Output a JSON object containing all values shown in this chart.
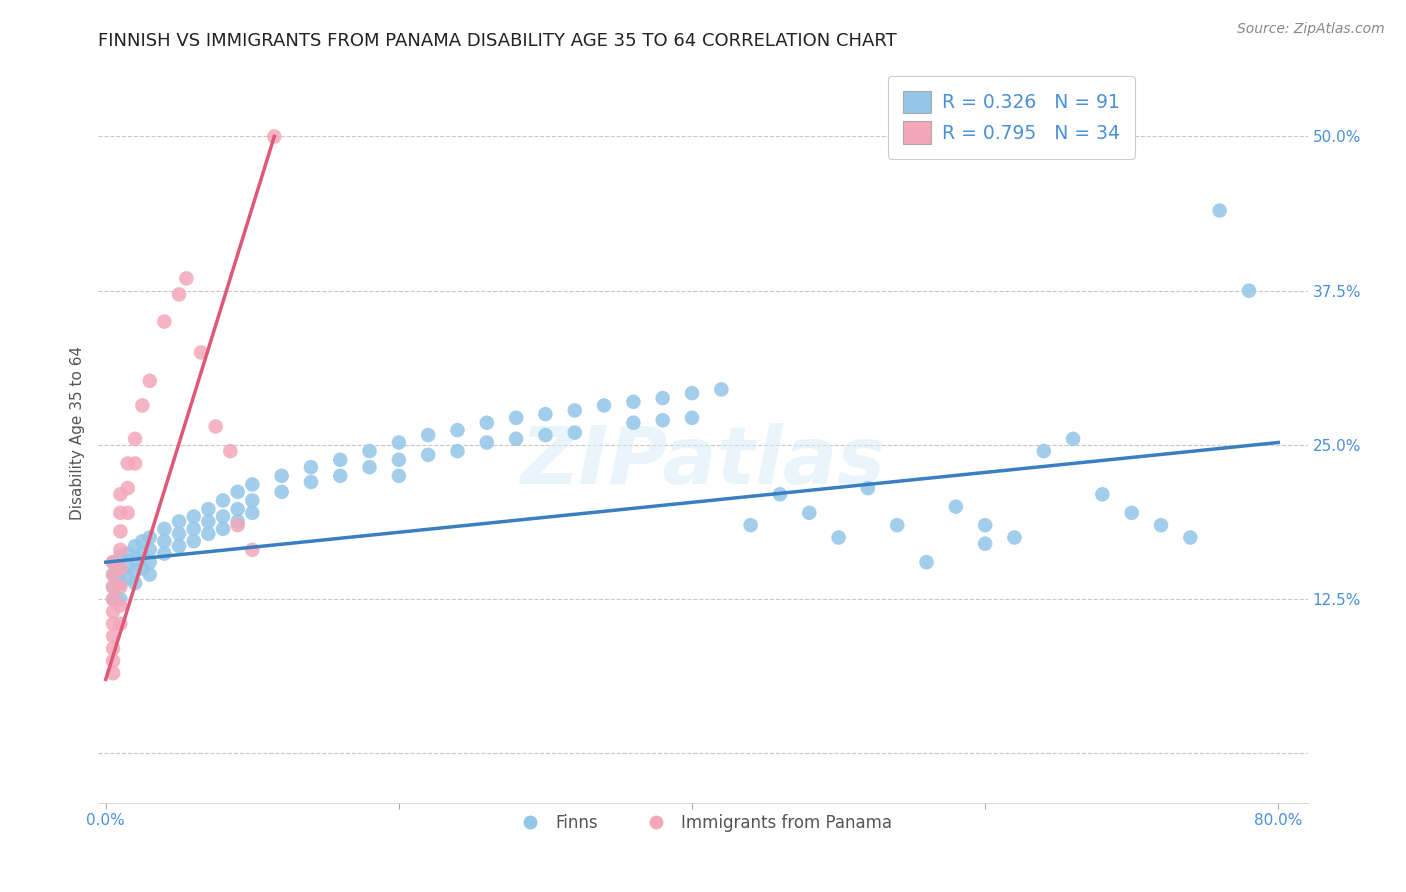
{
  "title": "FINNISH VS IMMIGRANTS FROM PANAMA DISABILITY AGE 35 TO 64 CORRELATION CHART",
  "source": "Source: ZipAtlas.com",
  "ylabel": "Disability Age 35 to 64",
  "xlim": [
    -0.005,
    0.82
  ],
  "ylim": [
    -0.04,
    0.56
  ],
  "yticks": [
    0.0,
    0.125,
    0.25,
    0.375,
    0.5
  ],
  "ytick_labels": [
    "",
    "12.5%",
    "25.0%",
    "37.5%",
    "50.0%"
  ],
  "xticks": [
    0.0,
    0.2,
    0.4,
    0.6,
    0.8
  ],
  "xtick_labels": [
    "0.0%",
    "",
    "",
    "",
    "80.0%"
  ],
  "watermark": "ZIPatlas",
  "finns_color": "#93c6e8",
  "panama_color": "#f4a7b9",
  "finns_line_color": "#3a7fc1",
  "panama_line_color": "#e05878",
  "finns_scatter": [
    [
      0.005,
      0.155
    ],
    [
      0.005,
      0.145
    ],
    [
      0.005,
      0.135
    ],
    [
      0.005,
      0.125
    ],
    [
      0.01,
      0.16
    ],
    [
      0.01,
      0.148
    ],
    [
      0.01,
      0.138
    ],
    [
      0.01,
      0.125
    ],
    [
      0.015,
      0.162
    ],
    [
      0.015,
      0.152
    ],
    [
      0.015,
      0.142
    ],
    [
      0.02,
      0.168
    ],
    [
      0.02,
      0.158
    ],
    [
      0.02,
      0.148
    ],
    [
      0.02,
      0.138
    ],
    [
      0.025,
      0.172
    ],
    [
      0.025,
      0.162
    ],
    [
      0.025,
      0.15
    ],
    [
      0.03,
      0.175
    ],
    [
      0.03,
      0.165
    ],
    [
      0.03,
      0.155
    ],
    [
      0.03,
      0.145
    ],
    [
      0.04,
      0.182
    ],
    [
      0.04,
      0.172
    ],
    [
      0.04,
      0.162
    ],
    [
      0.05,
      0.188
    ],
    [
      0.05,
      0.178
    ],
    [
      0.05,
      0.168
    ],
    [
      0.06,
      0.192
    ],
    [
      0.06,
      0.182
    ],
    [
      0.06,
      0.172
    ],
    [
      0.07,
      0.198
    ],
    [
      0.07,
      0.188
    ],
    [
      0.07,
      0.178
    ],
    [
      0.08,
      0.205
    ],
    [
      0.08,
      0.192
    ],
    [
      0.08,
      0.182
    ],
    [
      0.09,
      0.212
    ],
    [
      0.09,
      0.198
    ],
    [
      0.09,
      0.188
    ],
    [
      0.1,
      0.218
    ],
    [
      0.1,
      0.205
    ],
    [
      0.1,
      0.195
    ],
    [
      0.12,
      0.225
    ],
    [
      0.12,
      0.212
    ],
    [
      0.14,
      0.232
    ],
    [
      0.14,
      0.22
    ],
    [
      0.16,
      0.238
    ],
    [
      0.16,
      0.225
    ],
    [
      0.18,
      0.245
    ],
    [
      0.18,
      0.232
    ],
    [
      0.2,
      0.252
    ],
    [
      0.2,
      0.238
    ],
    [
      0.2,
      0.225
    ],
    [
      0.22,
      0.258
    ],
    [
      0.22,
      0.242
    ],
    [
      0.24,
      0.262
    ],
    [
      0.24,
      0.245
    ],
    [
      0.26,
      0.268
    ],
    [
      0.26,
      0.252
    ],
    [
      0.28,
      0.272
    ],
    [
      0.28,
      0.255
    ],
    [
      0.3,
      0.275
    ],
    [
      0.3,
      0.258
    ],
    [
      0.32,
      0.278
    ],
    [
      0.32,
      0.26
    ],
    [
      0.34,
      0.282
    ],
    [
      0.36,
      0.285
    ],
    [
      0.36,
      0.268
    ],
    [
      0.38,
      0.288
    ],
    [
      0.38,
      0.27
    ],
    [
      0.4,
      0.292
    ],
    [
      0.4,
      0.272
    ],
    [
      0.42,
      0.295
    ],
    [
      0.44,
      0.185
    ],
    [
      0.46,
      0.21
    ],
    [
      0.48,
      0.195
    ],
    [
      0.5,
      0.175
    ],
    [
      0.52,
      0.215
    ],
    [
      0.54,
      0.185
    ],
    [
      0.56,
      0.155
    ],
    [
      0.58,
      0.2
    ],
    [
      0.6,
      0.185
    ],
    [
      0.6,
      0.17
    ],
    [
      0.62,
      0.175
    ],
    [
      0.64,
      0.245
    ],
    [
      0.66,
      0.255
    ],
    [
      0.68,
      0.21
    ],
    [
      0.7,
      0.195
    ],
    [
      0.72,
      0.185
    ],
    [
      0.74,
      0.175
    ],
    [
      0.76,
      0.44
    ],
    [
      0.78,
      0.375
    ]
  ],
  "panama_scatter": [
    [
      0.005,
      0.155
    ],
    [
      0.005,
      0.145
    ],
    [
      0.005,
      0.135
    ],
    [
      0.005,
      0.125
    ],
    [
      0.005,
      0.115
    ],
    [
      0.005,
      0.105
    ],
    [
      0.005,
      0.095
    ],
    [
      0.005,
      0.085
    ],
    [
      0.005,
      0.075
    ],
    [
      0.005,
      0.065
    ],
    [
      0.01,
      0.21
    ],
    [
      0.01,
      0.195
    ],
    [
      0.01,
      0.18
    ],
    [
      0.01,
      0.165
    ],
    [
      0.01,
      0.15
    ],
    [
      0.01,
      0.135
    ],
    [
      0.01,
      0.12
    ],
    [
      0.01,
      0.105
    ],
    [
      0.015,
      0.235
    ],
    [
      0.015,
      0.215
    ],
    [
      0.015,
      0.195
    ],
    [
      0.02,
      0.255
    ],
    [
      0.02,
      0.235
    ],
    [
      0.025,
      0.282
    ],
    [
      0.03,
      0.302
    ],
    [
      0.04,
      0.35
    ],
    [
      0.05,
      0.372
    ],
    [
      0.055,
      0.385
    ],
    [
      0.065,
      0.325
    ],
    [
      0.075,
      0.265
    ],
    [
      0.085,
      0.245
    ],
    [
      0.09,
      0.185
    ],
    [
      0.1,
      0.165
    ],
    [
      0.115,
      0.5
    ]
  ],
  "title_fontsize": 13,
  "axis_fontsize": 11,
  "tick_fontsize": 11,
  "source_fontsize": 10,
  "background_color": "#ffffff",
  "grid_color": "#c8c8c8"
}
